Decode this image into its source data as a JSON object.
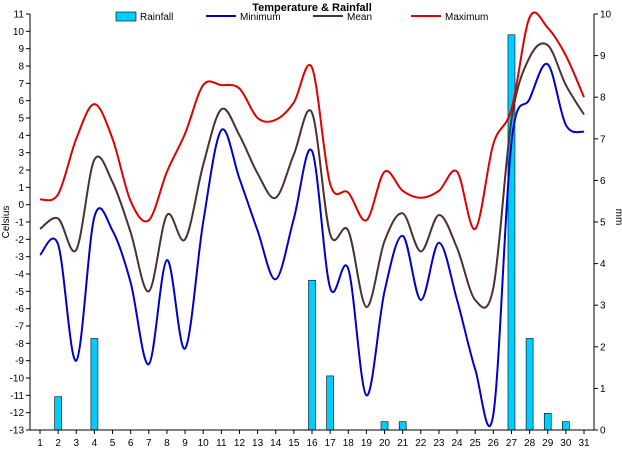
{
  "chart_data": {
    "type": "line",
    "title": "Temperature & Rainfall",
    "ylabel": "Celsius",
    "y2label": "mm",
    "ylim": [
      -13,
      11
    ],
    "y2lim": [
      0,
      10
    ],
    "x": [
      1,
      2,
      3,
      4,
      5,
      6,
      7,
      8,
      9,
      10,
      11,
      12,
      13,
      14,
      15,
      16,
      17,
      18,
      19,
      20,
      21,
      22,
      23,
      24,
      25,
      26,
      27,
      28,
      29,
      30,
      31
    ],
    "xlim": [
      1,
      31
    ],
    "grid": false,
    "legend_position": "top",
    "rainfall": {
      "name": "Rainfall",
      "color": "#00CCFF",
      "values": [
        0,
        0.8,
        0,
        2.2,
        0,
        0,
        0,
        0,
        0,
        0,
        0,
        0,
        0,
        0,
        0,
        3.6,
        1.3,
        0,
        0,
        0.2,
        0.2,
        0,
        0,
        0,
        0,
        0,
        9.5,
        2.2,
        0.4,
        0.2,
        0
      ]
    },
    "series": [
      {
        "name": "Minimum",
        "color": "#0000CC",
        "values": [
          -2.9,
          -2.3,
          -9.0,
          -0.7,
          -1.5,
          -4.5,
          -9.2,
          -3.2,
          -8.3,
          -1.0,
          4.3,
          1.5,
          -1.5,
          -4.3,
          -0.8,
          3.1,
          -4.8,
          -3.7,
          -11.0,
          -5.0,
          -1.8,
          -5.5,
          -2.2,
          -5.5,
          -9.5,
          -12.1,
          3.6,
          6.1,
          8.1,
          4.6,
          4.2
        ]
      },
      {
        "name": "Mean",
        "color": "#4D3030",
        "values": [
          -1.4,
          -0.8,
          -2.6,
          2.6,
          1.3,
          -1.6,
          -5.0,
          -0.6,
          -2.0,
          2.3,
          5.5,
          4.0,
          1.8,
          0.4,
          2.9,
          5.3,
          -1.7,
          -1.5,
          -5.9,
          -2.1,
          -0.5,
          -2.7,
          -0.6,
          -2.5,
          -5.5,
          -4.8,
          4.9,
          8.5,
          9.2,
          6.9,
          5.2
        ]
      },
      {
        "name": "Maximum",
        "color": "#DD0000",
        "values": [
          0.3,
          0.6,
          3.8,
          5.8,
          3.8,
          0.2,
          -0.9,
          1.9,
          4.1,
          6.9,
          6.9,
          6.7,
          5.0,
          4.9,
          5.9,
          7.9,
          1.2,
          0.7,
          -0.9,
          1.9,
          0.8,
          0.4,
          0.8,
          1.9,
          -1.4,
          3.5,
          5.5,
          10.8,
          10.2,
          8.6,
          6.2
        ]
      }
    ],
    "x_ticks": [
      "1",
      "2",
      "3",
      "4",
      "5",
      "6",
      "7",
      "8",
      "9",
      "10",
      "11",
      "12",
      "13",
      "14",
      "15",
      "16",
      "17",
      "18",
      "19",
      "20",
      "21",
      "22",
      "23",
      "24",
      "25",
      "26",
      "27",
      "28",
      "29",
      "30",
      "31"
    ],
    "y_ticks": [
      "-13",
      "-12",
      "-11",
      "-10",
      "-9",
      "-8",
      "-7",
      "-6",
      "-5",
      "-4",
      "-3",
      "-2",
      "-1",
      "0",
      "1",
      "2",
      "3",
      "4",
      "5",
      "6",
      "7",
      "8",
      "9",
      "10",
      "11"
    ],
    "y2_ticks": [
      "0",
      "1",
      "2",
      "3",
      "4",
      "5",
      "6",
      "7",
      "8",
      "9",
      "10"
    ]
  }
}
